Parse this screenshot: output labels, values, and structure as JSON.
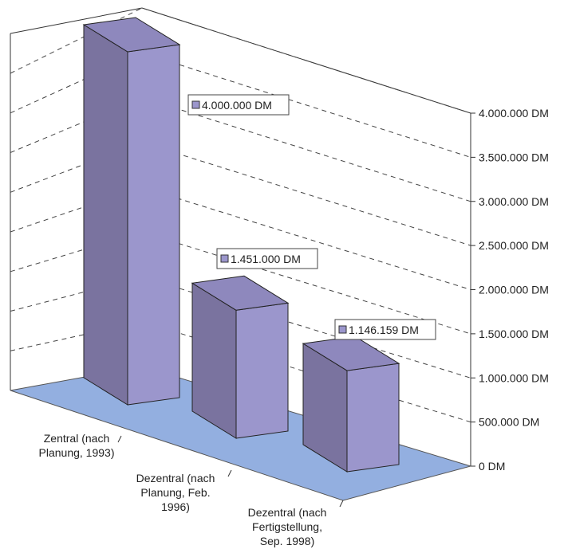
{
  "chart_data": {
    "type": "bar",
    "categories": [
      [
        "Zentral (nach",
        "Planung, 1993)"
      ],
      [
        "Dezentral (nach",
        "Planung, Feb.",
        "1996)"
      ],
      [
        "Dezentral (nach",
        "Fertigstellung,",
        "Sep. 1998)"
      ]
    ],
    "values": [
      4000000,
      1451000,
      1146159
    ],
    "data_labels": [
      "4.000.000 DM",
      "1.451.000 DM",
      "1.146.159 DM"
    ],
    "y_ticks": [
      {
        "value": 0,
        "label": "0 DM"
      },
      {
        "value": 500000,
        "label": "500.000 DM"
      },
      {
        "value": 1000000,
        "label": "1.000.000 DM"
      },
      {
        "value": 1500000,
        "label": "1.500.000 DM"
      },
      {
        "value": 2000000,
        "label": "2.000.000 DM"
      },
      {
        "value": 2500000,
        "label": "2.500.000 DM"
      },
      {
        "value": 3000000,
        "label": "3.000.000 DM"
      },
      {
        "value": 3500000,
        "label": "3.500.000 DM"
      },
      {
        "value": 4000000,
        "label": "4.000.000 DM"
      }
    ],
    "ylim": [
      0,
      4000000
    ],
    "grid": true,
    "style": "3d-column",
    "colors": {
      "bar_front": "#9b96cc",
      "bar_side": "#7a739f",
      "bar_top": "#8e88bd",
      "floor": "#93afe0",
      "grid": "#444444",
      "label_marker": "#9b96cc"
    }
  }
}
